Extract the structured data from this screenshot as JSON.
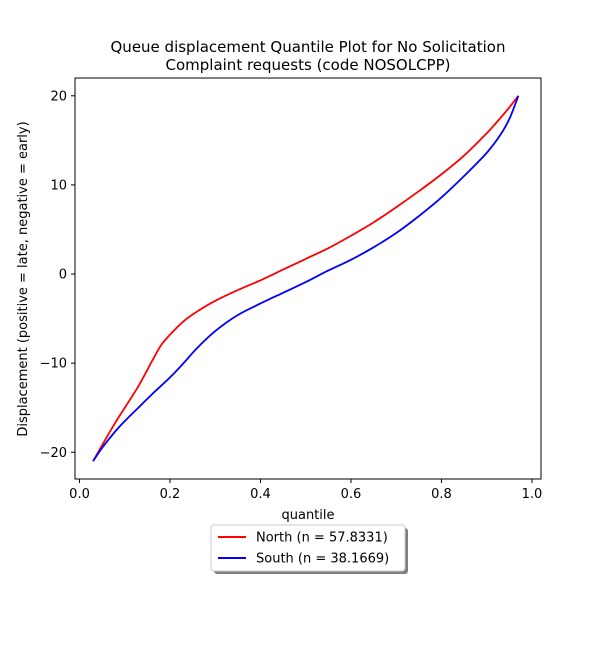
{
  "chart_data": {
    "type": "line",
    "title_line1": "Queue displacement Quantile Plot for No Solicitation",
    "title_line2": "Complaint  requests (code NOSOLCPP)",
    "xlabel": "quantile",
    "ylabel": "Displacement (positive = late, negative = early)",
    "xlim": [
      -0.01,
      1.02
    ],
    "ylim": [
      -23,
      22
    ],
    "xticks": [
      0.0,
      0.2,
      0.4,
      0.6,
      0.8,
      1.0
    ],
    "xtick_labels": [
      "0.0",
      "0.2",
      "0.4",
      "0.6",
      "0.8",
      "1.0"
    ],
    "yticks": [
      -20,
      -10,
      0,
      10,
      20
    ],
    "ytick_labels": [
      "−20",
      "−10",
      "0",
      "10",
      "20"
    ],
    "grid": false,
    "legend_position": "below-center",
    "series": [
      {
        "name": "North (n = 57.8331)",
        "color": "#ff0000",
        "x": [
          0.03,
          0.05,
          0.08,
          0.1,
          0.13,
          0.16,
          0.18,
          0.2,
          0.23,
          0.26,
          0.3,
          0.35,
          0.4,
          0.45,
          0.5,
          0.55,
          0.6,
          0.65,
          0.7,
          0.75,
          0.8,
          0.85,
          0.9,
          0.93,
          0.95,
          0.97
        ],
        "y": [
          -21.0,
          -19.2,
          -16.6,
          -15.0,
          -12.6,
          -9.8,
          -8.0,
          -6.8,
          -5.3,
          -4.2,
          -3.0,
          -1.8,
          -0.7,
          0.5,
          1.7,
          2.9,
          4.3,
          5.8,
          7.5,
          9.3,
          11.2,
          13.3,
          15.8,
          17.5,
          18.7,
          20.0
        ]
      },
      {
        "name": "South (n = 38.1669)",
        "color": "#0000ff",
        "x": [
          0.03,
          0.05,
          0.08,
          0.1,
          0.13,
          0.16,
          0.2,
          0.23,
          0.26,
          0.3,
          0.35,
          0.4,
          0.45,
          0.5,
          0.55,
          0.6,
          0.65,
          0.7,
          0.75,
          0.8,
          0.85,
          0.9,
          0.93,
          0.95,
          0.97
        ],
        "y": [
          -21.0,
          -19.5,
          -17.6,
          -16.5,
          -15.0,
          -13.5,
          -11.6,
          -10.0,
          -8.3,
          -6.4,
          -4.6,
          -3.3,
          -2.1,
          -0.9,
          0.4,
          1.6,
          3.0,
          4.6,
          6.5,
          8.6,
          11.0,
          13.6,
          15.6,
          17.4,
          20.0
        ]
      }
    ]
  }
}
